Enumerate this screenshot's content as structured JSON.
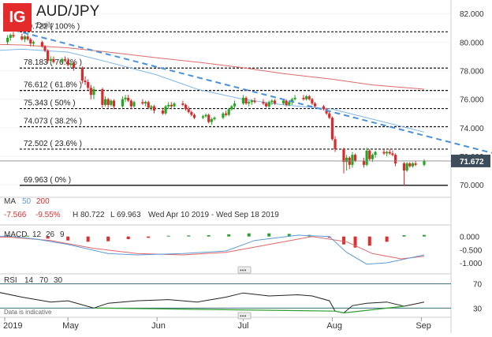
{
  "header": {
    "logo": "IG",
    "symbol": "AUD/JPY",
    "interval": "Daily"
  },
  "colors": {
    "up": "#22a822",
    "down": "#d92b2b",
    "ma50": "#7eb6e6",
    "ma200": "#e06a6a",
    "trendline": "#4a90d9",
    "macd_line": "#5b9bd5",
    "signal_line": "#e06666",
    "hist_pos": "#2e9e2e",
    "hist_neg": "#d93030",
    "rsi_line": "#222222",
    "rsi_oversold": "#2e9e2e",
    "price_tag": "#3e4d5c",
    "fib": "#111111",
    "current_line": "#888888"
  },
  "stats": {
    "change": "-7.566",
    "change_pct": "-9.55%",
    "high": "H 80.722",
    "low": "L 69.963",
    "range": "Wed Apr 10 2019 - Wed Sep 18 2019"
  },
  "ma_legend": {
    "label": "MA",
    "p1": "50",
    "p2": "200"
  },
  "macd_legend": {
    "label": "MACD",
    "fast": "12",
    "slow": "26",
    "signal": "9"
  },
  "rsi_legend": {
    "label": "RSI",
    "period": "14",
    "upper": "70",
    "lower": "30"
  },
  "footer_note": "Data is indicative",
  "chart_data": {
    "type": "candlestick",
    "title": "AUD/JPY",
    "timeframe": "Daily",
    "x_ticks": [
      "2019",
      "May",
      "Jun",
      "Jul",
      "Aug",
      "Sep"
    ],
    "y_ticks": [
      "82.000",
      "80.000",
      "78.000",
      "76.000",
      "74.000",
      "72.000",
      "70.000"
    ],
    "ylim": [
      69.4,
      82.4
    ],
    "current_price": "71.672",
    "current_value": 71.672,
    "fibonacci": [
      {
        "label": "80.722 ( 100% )",
        "value": 80.722
      },
      {
        "label": "78.183 ( 76.4% )",
        "value": 78.183
      },
      {
        "label": "76.612 ( 61.8% )",
        "value": 76.612
      },
      {
        "label": "75.343 ( 50% )",
        "value": 75.343
      },
      {
        "label": "74.073 ( 38.2% )",
        "value": 74.073
      },
      {
        "label": "72.502 ( 23.6% )",
        "value": 72.502
      },
      {
        "label": "69.963 ( 0% )",
        "value": 69.963
      }
    ],
    "trendline": [
      {
        "date": "2019-04-09",
        "value": 81.0
      },
      {
        "date": "2019-09-03",
        "value": 73.4
      }
    ],
    "candles": [
      [
        "2019-04-10",
        80.0,
        80.5,
        79.8,
        80.3
      ],
      [
        "2019-04-11",
        80.3,
        80.6,
        80.1,
        80.5
      ],
      [
        "2019-04-12",
        80.5,
        80.72,
        80.3,
        80.4
      ],
      [
        "2019-04-15",
        80.4,
        80.6,
        80.1,
        80.2
      ],
      [
        "2019-04-16",
        80.2,
        80.5,
        80.0,
        80.4
      ],
      [
        "2019-04-17",
        80.4,
        80.6,
        80.1,
        80.2
      ],
      [
        "2019-04-18",
        80.2,
        80.3,
        79.7,
        79.9
      ],
      [
        "2019-04-19",
        79.9,
        80.1,
        79.7,
        80.0
      ],
      [
        "2019-04-22",
        80.0,
        80.1,
        79.6,
        79.7
      ],
      [
        "2019-04-23",
        79.7,
        79.8,
        79.3,
        79.4
      ],
      [
        "2019-04-24",
        79.4,
        79.5,
        78.5,
        78.7
      ],
      [
        "2019-04-25",
        78.7,
        79.0,
        78.4,
        78.8
      ],
      [
        "2019-04-26",
        78.8,
        79.0,
        78.5,
        78.6
      ],
      [
        "2019-04-29",
        78.6,
        78.9,
        78.5,
        78.8
      ],
      [
        "2019-04-30",
        78.8,
        79.0,
        78.6,
        78.7
      ],
      [
        "2019-05-01",
        78.7,
        78.9,
        78.3,
        78.4
      ],
      [
        "2019-05-02",
        78.4,
        78.6,
        78.2,
        78.5
      ],
      [
        "2019-05-03",
        78.5,
        78.6,
        78.0,
        78.2
      ],
      [
        "2019-05-06",
        78.2,
        78.3,
        77.1,
        77.3
      ],
      [
        "2019-05-07",
        77.3,
        77.6,
        77.0,
        77.2
      ],
      [
        "2019-05-08",
        77.2,
        77.4,
        76.6,
        76.8
      ],
      [
        "2019-05-09",
        76.8,
        77.0,
        76.0,
        76.3
      ],
      [
        "2019-05-10",
        76.3,
        76.9,
        76.0,
        76.7
      ],
      [
        "2019-05-13",
        76.7,
        76.8,
        75.4,
        75.6
      ],
      [
        "2019-05-14",
        75.6,
        76.2,
        75.5,
        76.0
      ],
      [
        "2019-05-15",
        76.0,
        76.1,
        75.4,
        75.6
      ],
      [
        "2019-05-16",
        75.6,
        76.0,
        75.5,
        75.9
      ],
      [
        "2019-05-17",
        75.9,
        76.0,
        75.3,
        75.5
      ],
      [
        "2019-05-20",
        75.5,
        76.2,
        75.4,
        76.0
      ],
      [
        "2019-05-21",
        76.0,
        76.3,
        75.8,
        76.1
      ],
      [
        "2019-05-22",
        76.1,
        76.3,
        75.8,
        75.9
      ],
      [
        "2019-05-23",
        75.9,
        76.0,
        75.3,
        75.5
      ],
      [
        "2019-05-24",
        75.5,
        75.9,
        75.4,
        75.8
      ],
      [
        "2019-05-27",
        75.8,
        76.0,
        75.6,
        75.7
      ],
      [
        "2019-05-28",
        75.7,
        75.9,
        75.5,
        75.8
      ],
      [
        "2019-05-29",
        75.8,
        75.9,
        75.3,
        75.4
      ],
      [
        "2019-05-30",
        75.4,
        75.6,
        75.2,
        75.5
      ],
      [
        "2019-05-31",
        75.5,
        75.6,
        75.0,
        75.2
      ],
      [
        "2019-06-03",
        75.2,
        75.4,
        74.9,
        75.0
      ],
      [
        "2019-06-04",
        75.0,
        75.6,
        74.9,
        75.5
      ],
      [
        "2019-06-05",
        75.5,
        75.8,
        75.3,
        75.6
      ],
      [
        "2019-06-06",
        75.6,
        75.8,
        75.3,
        75.5
      ],
      [
        "2019-06-07",
        75.5,
        75.8,
        75.4,
        75.7
      ],
      [
        "2019-06-10",
        75.7,
        75.9,
        75.5,
        75.6
      ],
      [
        "2019-06-11",
        75.6,
        75.7,
        75.2,
        75.3
      ],
      [
        "2019-06-12",
        75.3,
        75.5,
        75.0,
        75.1
      ],
      [
        "2019-06-13",
        75.1,
        75.2,
        74.8,
        74.9
      ],
      [
        "2019-06-14",
        74.9,
        75.0,
        74.6,
        74.7
      ],
      [
        "2019-06-17",
        74.7,
        74.9,
        74.6,
        74.8
      ],
      [
        "2019-06-18",
        74.8,
        75.0,
        74.7,
        74.9
      ],
      [
        "2019-06-19",
        74.9,
        75.0,
        74.3,
        74.4
      ],
      [
        "2019-06-20",
        74.4,
        74.7,
        74.2,
        74.6
      ],
      [
        "2019-06-21",
        74.6,
        74.8,
        74.5,
        74.7
      ],
      [
        "2019-06-24",
        74.7,
        75.1,
        74.6,
        75.0
      ],
      [
        "2019-06-25",
        75.0,
        75.2,
        74.8,
        74.9
      ],
      [
        "2019-06-26",
        74.9,
        75.4,
        74.8,
        75.3
      ],
      [
        "2019-06-27",
        75.3,
        75.6,
        75.2,
        75.5
      ],
      [
        "2019-06-28",
        75.5,
        75.9,
        75.3,
        75.7
      ],
      [
        "2019-07-01",
        75.7,
        76.3,
        75.6,
        76.1
      ],
      [
        "2019-07-02",
        76.1,
        76.2,
        75.6,
        75.7
      ],
      [
        "2019-07-03",
        75.7,
        75.9,
        75.5,
        75.8
      ],
      [
        "2019-07-04",
        75.8,
        76.0,
        75.6,
        75.9
      ],
      [
        "2019-07-05",
        75.9,
        76.1,
        75.7,
        75.8
      ],
      [
        "2019-07-08",
        75.8,
        76.0,
        75.6,
        75.7
      ],
      [
        "2019-07-09",
        75.7,
        75.8,
        75.4,
        75.5
      ],
      [
        "2019-07-10",
        75.5,
        75.9,
        75.4,
        75.8
      ],
      [
        "2019-07-11",
        75.8,
        76.0,
        75.6,
        75.9
      ],
      [
        "2019-07-12",
        75.9,
        76.0,
        75.6,
        75.7
      ],
      [
        "2019-07-15",
        75.7,
        76.0,
        75.6,
        75.9
      ],
      [
        "2019-07-16",
        75.9,
        76.0,
        75.5,
        75.6
      ],
      [
        "2019-07-17",
        75.6,
        75.9,
        75.5,
        75.8
      ],
      [
        "2019-07-18",
        75.8,
        76.1,
        75.6,
        76.0
      ],
      [
        "2019-07-19",
        76.0,
        76.3,
        75.9,
        76.1
      ],
      [
        "2019-07-22",
        76.1,
        76.3,
        75.9,
        76.0
      ],
      [
        "2019-07-23",
        76.0,
        76.3,
        75.9,
        76.2
      ],
      [
        "2019-07-24",
        76.2,
        76.3,
        75.9,
        76.0
      ],
      [
        "2019-07-25",
        76.0,
        76.1,
        75.6,
        75.7
      ],
      [
        "2019-07-26",
        75.7,
        75.8,
        75.4,
        75.5
      ],
      [
        "2019-07-29",
        75.5,
        75.6,
        75.2,
        75.3
      ],
      [
        "2019-07-30",
        75.3,
        75.4,
        74.9,
        75.0
      ],
      [
        "2019-07-31",
        75.0,
        75.1,
        74.6,
        74.7
      ],
      [
        "2019-08-01",
        74.7,
        74.8,
        73.1,
        73.2
      ],
      [
        "2019-08-02",
        73.2,
        73.4,
        72.3,
        72.5
      ],
      [
        "2019-08-05",
        72.5,
        72.6,
        70.8,
        71.6
      ],
      [
        "2019-08-06",
        71.6,
        72.1,
        71.0,
        71.9
      ],
      [
        "2019-08-07",
        71.9,
        72.0,
        71.1,
        71.4
      ],
      [
        "2019-08-08",
        71.4,
        72.3,
        71.2,
        72.1
      ],
      [
        "2019-08-09",
        72.1,
        72.2,
        71.6,
        71.7
      ],
      [
        "2019-08-12",
        71.7,
        71.9,
        71.2,
        71.4
      ],
      [
        "2019-08-13",
        71.4,
        72.6,
        71.3,
        72.4
      ],
      [
        "2019-08-14",
        72.4,
        72.5,
        71.7,
        71.8
      ],
      [
        "2019-08-15",
        71.8,
        72.2,
        71.6,
        72.1
      ],
      [
        "2019-08-16",
        72.1,
        72.4,
        71.9,
        72.3
      ],
      [
        "2019-08-19",
        72.3,
        72.5,
        72.1,
        72.2
      ],
      [
        "2019-08-20",
        72.2,
        72.4,
        72.0,
        72.3
      ],
      [
        "2019-08-21",
        72.3,
        72.5,
        72.1,
        72.2
      ],
      [
        "2019-08-22",
        72.2,
        72.4,
        72.0,
        72.1
      ],
      [
        "2019-08-23",
        72.1,
        72.2,
        71.3,
        71.5
      ],
      [
        "2019-08-26",
        71.5,
        71.6,
        69.96,
        71.0
      ],
      [
        "2019-08-27",
        71.0,
        71.6,
        70.9,
        71.5
      ],
      [
        "2019-08-28",
        71.5,
        71.6,
        71.2,
        71.3
      ],
      [
        "2019-08-29",
        71.3,
        71.6,
        71.2,
        71.5
      ],
      [
        "2019-08-30",
        71.5,
        71.7,
        71.3,
        71.4
      ],
      [
        "2019-09-02",
        71.4,
        71.8,
        71.3,
        71.67
      ]
    ],
    "ma50": [
      {
        "date": "2019-03-25",
        "value": 79.3
      },
      {
        "date": "2019-04-15",
        "value": 79.5
      },
      {
        "date": "2019-05-01",
        "value": 79.3
      },
      {
        "date": "2019-05-15",
        "value": 78.6
      },
      {
        "date": "2019-06-01",
        "value": 77.7
      },
      {
        "date": "2019-06-15",
        "value": 76.7
      },
      {
        "date": "2019-07-01",
        "value": 76.0
      },
      {
        "date": "2019-07-15",
        "value": 75.6
      },
      {
        "date": "2019-08-01",
        "value": 75.3
      },
      {
        "date": "2019-08-15",
        "value": 74.6
      },
      {
        "date": "2019-09-02",
        "value": 73.7
      }
    ],
    "ma200": [
      {
        "date": "2019-03-25",
        "value": 79.9
      },
      {
        "date": "2019-04-15",
        "value": 79.8
      },
      {
        "date": "2019-05-01",
        "value": 79.6
      },
      {
        "date": "2019-05-15",
        "value": 79.3
      },
      {
        "date": "2019-06-01",
        "value": 78.9
      },
      {
        "date": "2019-06-15",
        "value": 78.6
      },
      {
        "date": "2019-07-01",
        "value": 78.2
      },
      {
        "date": "2019-07-15",
        "value": 77.8
      },
      {
        "date": "2019-08-01",
        "value": 77.4
      },
      {
        "date": "2019-08-15",
        "value": 77.0
      },
      {
        "date": "2019-09-02",
        "value": 76.7
      }
    ],
    "macd": {
      "y_ticks": [
        "0.000",
        "-0.500",
        "-1.000"
      ],
      "ylim": [
        -1.3,
        0.35
      ],
      "macd_line": [
        {
          "date": "2019-03-25",
          "value": -0.05
        },
        {
          "date": "2019-04-10",
          "value": 0.02
        },
        {
          "date": "2019-04-20",
          "value": -0.1
        },
        {
          "date": "2019-05-01",
          "value": -0.3
        },
        {
          "date": "2019-05-15",
          "value": -0.65
        },
        {
          "date": "2019-05-25",
          "value": -0.7
        },
        {
          "date": "2019-06-10",
          "value": -0.65
        },
        {
          "date": "2019-06-25",
          "value": -0.55
        },
        {
          "date": "2019-07-05",
          "value": -0.15
        },
        {
          "date": "2019-07-20",
          "value": 0.05
        },
        {
          "date": "2019-07-31",
          "value": 0.0
        },
        {
          "date": "2019-08-06",
          "value": -0.6
        },
        {
          "date": "2019-08-13",
          "value": -1.05
        },
        {
          "date": "2019-08-20",
          "value": -1.0
        },
        {
          "date": "2019-09-02",
          "value": -0.7
        }
      ],
      "signal_line": [
        {
          "date": "2019-03-25",
          "value": -0.1
        },
        {
          "date": "2019-04-10",
          "value": -0.02
        },
        {
          "date": "2019-04-25",
          "value": -0.15
        },
        {
          "date": "2019-05-10",
          "value": -0.45
        },
        {
          "date": "2019-05-25",
          "value": -0.65
        },
        {
          "date": "2019-06-10",
          "value": -0.7
        },
        {
          "date": "2019-06-25",
          "value": -0.6
        },
        {
          "date": "2019-07-10",
          "value": -0.3
        },
        {
          "date": "2019-07-25",
          "value": 0.0
        },
        {
          "date": "2019-08-06",
          "value": -0.2
        },
        {
          "date": "2019-08-15",
          "value": -0.65
        },
        {
          "date": "2019-08-25",
          "value": -0.85
        },
        {
          "date": "2019-09-02",
          "value": -0.75
        }
      ],
      "histogram": [
        {
          "date": "2019-04-10",
          "value": 0.05
        },
        {
          "date": "2019-04-17",
          "value": 0.03
        },
        {
          "date": "2019-04-24",
          "value": -0.08
        },
        {
          "date": "2019-05-01",
          "value": -0.15
        },
        {
          "date": "2019-05-08",
          "value": -0.2
        },
        {
          "date": "2019-05-15",
          "value": -0.18
        },
        {
          "date": "2019-05-22",
          "value": -0.1
        },
        {
          "date": "2019-05-29",
          "value": -0.05
        },
        {
          "date": "2019-06-05",
          "value": 0.03
        },
        {
          "date": "2019-06-12",
          "value": 0.04
        },
        {
          "date": "2019-06-19",
          "value": 0.05
        },
        {
          "date": "2019-06-26",
          "value": 0.08
        },
        {
          "date": "2019-07-03",
          "value": 0.12
        },
        {
          "date": "2019-07-10",
          "value": 0.12
        },
        {
          "date": "2019-07-17",
          "value": 0.1
        },
        {
          "date": "2019-07-24",
          "value": 0.06
        },
        {
          "date": "2019-07-31",
          "value": -0.05
        },
        {
          "date": "2019-08-05",
          "value": -0.3
        },
        {
          "date": "2019-08-09",
          "value": -0.42
        },
        {
          "date": "2019-08-14",
          "value": -0.35
        },
        {
          "date": "2019-08-20",
          "value": -0.2
        },
        {
          "date": "2019-08-26",
          "value": 0.05
        },
        {
          "date": "2019-09-02",
          "value": 0.06
        }
      ]
    },
    "rsi": {
      "levels": [
        "70",
        "30"
      ],
      "ylim": [
        20,
        80
      ],
      "line": [
        {
          "date": "2019-03-25",
          "value": 60
        },
        {
          "date": "2019-04-05",
          "value": 58
        },
        {
          "date": "2019-04-15",
          "value": 48
        },
        {
          "date": "2019-04-25",
          "value": 40
        },
        {
          "date": "2019-05-01",
          "value": 42
        },
        {
          "date": "2019-05-10",
          "value": 30
        },
        {
          "date": "2019-05-15",
          "value": 38
        },
        {
          "date": "2019-05-25",
          "value": 42
        },
        {
          "date": "2019-06-05",
          "value": 44
        },
        {
          "date": "2019-06-15",
          "value": 40
        },
        {
          "date": "2019-06-25",
          "value": 48
        },
        {
          "date": "2019-07-01",
          "value": 55
        },
        {
          "date": "2019-07-10",
          "value": 50
        },
        {
          "date": "2019-07-20",
          "value": 52
        },
        {
          "date": "2019-07-25",
          "value": 50
        },
        {
          "date": "2019-07-31",
          "value": 42
        },
        {
          "date": "2019-08-02",
          "value": 25
        },
        {
          "date": "2019-08-05",
          "value": 22
        },
        {
          "date": "2019-08-08",
          "value": 34
        },
        {
          "date": "2019-08-13",
          "value": 38
        },
        {
          "date": "2019-08-20",
          "value": 40
        },
        {
          "date": "2019-08-26",
          "value": 33
        },
        {
          "date": "2019-08-30",
          "value": 37
        },
        {
          "date": "2019-09-02",
          "value": 40
        }
      ]
    }
  }
}
